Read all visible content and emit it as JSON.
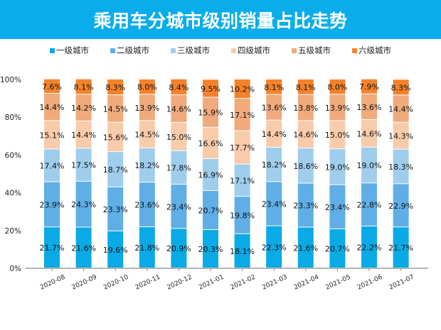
{
  "chart_data": {
    "type": "bar",
    "stacked": true,
    "title": "乘用车分城市级别销量占比走势",
    "categories": [
      "2020-08",
      "2020-09",
      "2020-10",
      "2020-11",
      "2020-12",
      "2021-01",
      "2021-02",
      "2021-03",
      "2021-04",
      "2021-05",
      "2021-06",
      "2021-07"
    ],
    "series": [
      {
        "name": "一级城市",
        "color": "#0AAAE6",
        "values": [
          21.7,
          21.6,
          19.6,
          21.8,
          20.9,
          20.3,
          18.1,
          22.3,
          21.6,
          20.7,
          22.2,
          21.7
        ]
      },
      {
        "name": "二级城市",
        "color": "#5FAEE6",
        "values": [
          23.9,
          24.3,
          23.3,
          23.6,
          23.4,
          20.7,
          19.8,
          23.4,
          23.3,
          23.4,
          22.8,
          22.9
        ]
      },
      {
        "name": "三级城市",
        "color": "#9FCDEC",
        "values": [
          17.4,
          17.5,
          18.7,
          18.2,
          17.8,
          16.9,
          17.1,
          18.2,
          18.6,
          19.0,
          19.0,
          18.3
        ]
      },
      {
        "name": "四级城市",
        "color": "#F8CBAB",
        "values": [
          15.1,
          14.4,
          15.6,
          14.5,
          15.0,
          16.6,
          17.7,
          14.4,
          14.6,
          15.0,
          14.6,
          14.3
        ]
      },
      {
        "name": "五级城市",
        "color": "#F0AA7C",
        "values": [
          14.4,
          14.2,
          14.5,
          13.9,
          14.6,
          15.9,
          17.1,
          13.6,
          13.8,
          13.9,
          13.6,
          14.4
        ]
      },
      {
        "name": "六级城市",
        "color": "#F5822A",
        "values": [
          7.6,
          8.1,
          8.3,
          8.0,
          8.4,
          9.5,
          10.2,
          8.1,
          8.1,
          8.0,
          7.9,
          8.3
        ]
      }
    ],
    "ylim": [
      0,
      100
    ],
    "yticks": [
      "0%",
      "20%",
      "40%",
      "60%",
      "80%",
      "100%"
    ],
    "legend_position": "top",
    "grid": false,
    "data_label_suffix": "%"
  }
}
